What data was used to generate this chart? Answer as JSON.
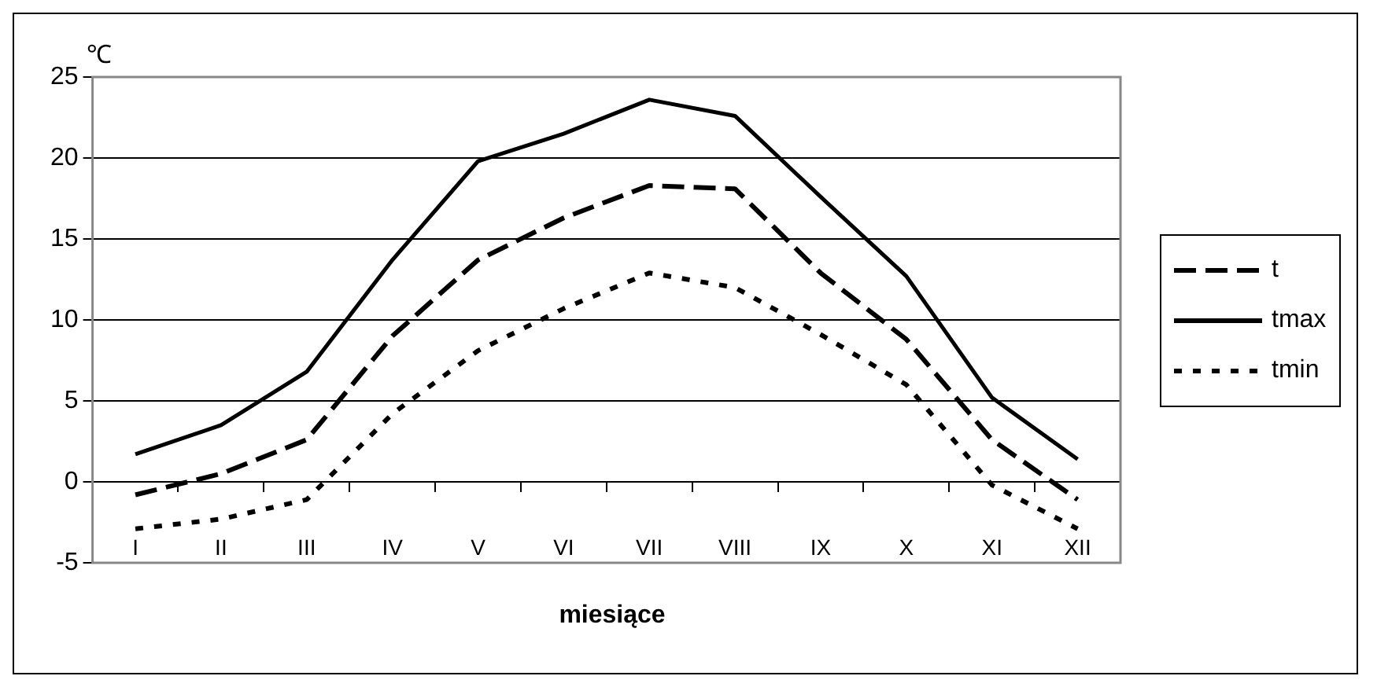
{
  "chart_data": {
    "type": "line",
    "xlabel": "miesiące",
    "ylabel": "℃",
    "categories": [
      "I",
      "II",
      "III",
      "IV",
      "V",
      "VI",
      "VII",
      "VIII",
      "IX",
      "X",
      "XI",
      "XII"
    ],
    "series": [
      {
        "name": "t",
        "color": "#000000",
        "line_style": "dashed",
        "values": [
          -0.8,
          0.5,
          2.6,
          9.0,
          13.7,
          16.3,
          18.3,
          18.1,
          12.9,
          8.8,
          2.6,
          -1.1
        ]
      },
      {
        "name": "tmax",
        "color": "#000000",
        "line_style": "solid",
        "values": [
          1.7,
          3.5,
          6.8,
          13.7,
          19.8,
          21.5,
          23.6,
          22.6,
          17.6,
          12.7,
          5.2,
          1.4
        ]
      },
      {
        "name": "tmin",
        "color": "#000000",
        "line_style": "dotted",
        "values": [
          -2.9,
          -2.3,
          -1.1,
          4.2,
          8.1,
          10.7,
          12.9,
          12.0,
          9.1,
          6.0,
          -0.2,
          -2.9
        ]
      }
    ],
    "ylim": [
      -5,
      25
    ],
    "yticks": [
      -5,
      0,
      5,
      10,
      15,
      20,
      25
    ],
    "grid": "y",
    "legend": "right",
    "marker": "none"
  }
}
